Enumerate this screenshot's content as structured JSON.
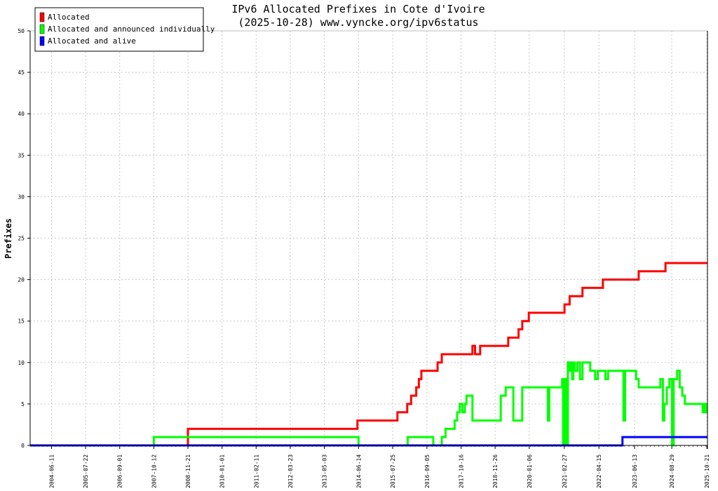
{
  "chart_data": {
    "type": "line",
    "title": "IPv6 Allocated Prefixes in Cote d'Ivoire",
    "subtitle": "(2025-10-28) www.vyncke.org/ipv6status",
    "xlabel": "",
    "ylabel": "Prefixes",
    "ylim": [
      0,
      50
    ],
    "yticks": [
      0,
      5,
      10,
      15,
      20,
      25,
      30,
      35,
      40,
      45,
      50
    ],
    "xlim": [
      "2003-10-01",
      "2025-10-28"
    ],
    "xticks": [
      "2004-06-11",
      "2005-07-22",
      "2006-09-01",
      "2007-10-12",
      "2008-11-21",
      "2010-01-01",
      "2011-02-11",
      "2012-03-23",
      "2013-05-03",
      "2014-06-14",
      "2015-07-25",
      "2016-09-05",
      "2017-10-16",
      "2018-11-26",
      "2020-01-06",
      "2021-02-27",
      "2022-04-15",
      "2023-06-13",
      "2024-08-29",
      "2025-10-21"
    ],
    "grid": true,
    "legend_position": "top-left",
    "series": [
      {
        "name": "Allocated",
        "color": "#ff0000",
        "step": true,
        "points": [
          [
            "2003-10-01",
            0
          ],
          [
            "2008-11-21",
            2
          ],
          [
            "2014-06-01",
            3
          ],
          [
            "2015-09-20",
            4
          ],
          [
            "2016-01-15",
            5
          ],
          [
            "2016-03-01",
            6
          ],
          [
            "2016-05-01",
            7
          ],
          [
            "2016-06-01",
            8
          ],
          [
            "2016-07-01",
            9
          ],
          [
            "2017-01-10",
            10
          ],
          [
            "2017-03-01",
            11
          ],
          [
            "2018-03-01",
            12
          ],
          [
            "2018-04-01",
            11
          ],
          [
            "2018-06-01",
            12
          ],
          [
            "2019-05-01",
            13
          ],
          [
            "2019-09-01",
            14
          ],
          [
            "2019-10-15",
            15
          ],
          [
            "2020-01-01",
            16
          ],
          [
            "2021-03-01",
            17
          ],
          [
            "2021-05-01",
            18
          ],
          [
            "2021-10-01",
            19
          ],
          [
            "2022-06-01",
            20
          ],
          [
            "2023-08-01",
            21
          ],
          [
            "2024-06-15",
            22
          ],
          [
            "2025-10-28",
            22
          ]
        ]
      },
      {
        "name": "Allocated and announced individually",
        "color": "#00ff00",
        "step": true,
        "points": [
          [
            "2003-10-01",
            0
          ],
          [
            "2007-10-12",
            1
          ],
          [
            "2014-06-14",
            0
          ],
          [
            "2016-01-20",
            1
          ],
          [
            "2016-11-20",
            0
          ],
          [
            "2017-03-01",
            1
          ],
          [
            "2017-04-15",
            2
          ],
          [
            "2017-08-01",
            3
          ],
          [
            "2017-09-01",
            4
          ],
          [
            "2017-10-01",
            5
          ],
          [
            "2017-11-01",
            4
          ],
          [
            "2017-12-01",
            5
          ],
          [
            "2017-12-20",
            6
          ],
          [
            "2018-03-01",
            3
          ],
          [
            "2019-02-01",
            6
          ],
          [
            "2019-04-01",
            7
          ],
          [
            "2019-07-01",
            3
          ],
          [
            "2019-10-15",
            7
          ],
          [
            "2020-07-01",
            7
          ],
          [
            "2020-08-15",
            3
          ],
          [
            "2020-09-01",
            7
          ],
          [
            "2021-02-01",
            8
          ],
          [
            "2021-02-12",
            0
          ],
          [
            "2021-02-20",
            8
          ],
          [
            "2021-03-01",
            0
          ],
          [
            "2021-03-08",
            8
          ],
          [
            "2021-03-15",
            0
          ],
          [
            "2021-03-22",
            8
          ],
          [
            "2021-04-01",
            0
          ],
          [
            "2021-04-10",
            10
          ],
          [
            "2021-05-01",
            9
          ],
          [
            "2021-05-15",
            10
          ],
          [
            "2021-06-01",
            8
          ],
          [
            "2021-06-15",
            10
          ],
          [
            "2021-07-01",
            9
          ],
          [
            "2021-08-01",
            10
          ],
          [
            "2021-09-01",
            8
          ],
          [
            "2021-10-01",
            10
          ],
          [
            "2022-01-01",
            9
          ],
          [
            "2022-03-01",
            8
          ],
          [
            "2022-04-01",
            9
          ],
          [
            "2022-07-01",
            8
          ],
          [
            "2022-08-01",
            9
          ],
          [
            "2023-02-01",
            3
          ],
          [
            "2023-02-20",
            9
          ],
          [
            "2023-07-01",
            8
          ],
          [
            "2023-08-01",
            7
          ],
          [
            "2024-04-15",
            8
          ],
          [
            "2024-05-15",
            3
          ],
          [
            "2024-06-01",
            5
          ],
          [
            "2024-07-01",
            7
          ],
          [
            "2024-08-01",
            8
          ],
          [
            "2024-09-01",
            0
          ],
          [
            "2024-09-20",
            8
          ],
          [
            "2024-11-01",
            9
          ],
          [
            "2024-12-01",
            7
          ],
          [
            "2025-01-01",
            6
          ],
          [
            "2025-02-01",
            5
          ],
          [
            "2025-09-01",
            4
          ],
          [
            "2025-09-20",
            5
          ],
          [
            "2025-10-10",
            4
          ],
          [
            "2025-10-28",
            4
          ]
        ]
      },
      {
        "name": "Allocated and alive",
        "color": "#0000ff",
        "step": true,
        "points": [
          [
            "2003-10-01",
            0
          ],
          [
            "2023-01-20",
            1
          ],
          [
            "2025-10-28",
            1
          ]
        ]
      }
    ]
  }
}
